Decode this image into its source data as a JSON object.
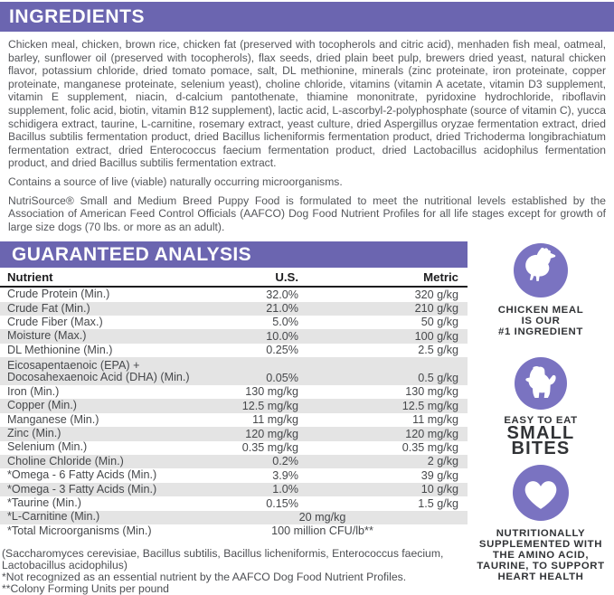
{
  "colors": {
    "header_purple": "#6b65b0",
    "badge_purple": "#7a73c1",
    "row_shade": "#e4e4e4",
    "title_text": "#ffffff"
  },
  "ingredients": {
    "title": "INGREDIENTS",
    "body": "Chicken meal, chicken, brown rice, chicken fat (preserved with tocopherols and citric acid), menhaden fish meal, oatmeal, barley, sunflower oil (preserved with tocopherols), flax seeds, dried plain beet pulp, brewers dried yeast, natural chicken flavor, potassium chloride, dried tomato pomace, salt, DL methionine, minerals (zinc proteinate, iron proteinate, copper proteinate, manganese proteinate, selenium yeast), choline chloride, vitamins (vitamin A acetate, vitamin D3 supplement, vitamin E supplement, niacin, d-calcium pantothenate, thiamine mononitrate, pyridoxine hydrochloride, riboflavin supplement, folic acid, biotin, vitamin B12 supplement), lactic acid, L-ascorbyl-2-polyphosphate (source of vitamin C), yucca schidigera extract, taurine, L-carnitine, rosemary extract, yeast culture, dried Aspergillus oryzae fermentation extract, dried Bacillus subtilis fermentation product, dried Bacillus licheniformis fermentation product, dried Trichoderma longibrachiatum fermentation extract, dried Enterococcus faecium fermentation product, dried Lactobacillus acidophilus fermentation product, and dried Bacillus subtilis fermentation extract.",
    "note": "Contains a source of live (viable) naturally occurring microorganisms.",
    "aafco": "NutriSource® Small and Medium Breed Puppy Food is formulated to meet the nutritional levels established by the Association of American Feed Control Officials (AAFCO) Dog Food Nutrient Profiles for all life stages except for growth of large size dogs (70 lbs. or more as an adult)."
  },
  "analysis": {
    "title": "GUARANTEED ANALYSIS",
    "columns": {
      "nutrient": "Nutrient",
      "us": "U.S.",
      "metric": "Metric"
    },
    "rows": [
      {
        "nutrient": "Crude Protein (Min.)",
        "us": "32.0%",
        "metric": "320 g/kg",
        "shaded": false
      },
      {
        "nutrient": "Crude Fat (Min.)",
        "us": "21.0%",
        "metric": "210 g/kg",
        "shaded": true
      },
      {
        "nutrient": "Crude Fiber (Max.)",
        "us": "5.0%",
        "metric": "50 g/kg",
        "shaded": false
      },
      {
        "nutrient": "Moisture (Max.)",
        "us": "10.0%",
        "metric": "100 g/kg",
        "shaded": true
      },
      {
        "nutrient": "DL Methionine (Min.)",
        "us": "0.25%",
        "metric": "2.5 g/kg",
        "shaded": false
      },
      {
        "nutrient": "Eicosapentaenoic (EPA) +\nDocosahexaenoic Acid (DHA) (Min.)",
        "us": "0.05%",
        "metric": "0.5 g/kg",
        "shaded": true,
        "tall": true
      },
      {
        "nutrient": "Iron (Min.)",
        "us": "130 mg/kg",
        "metric": "130 mg/kg",
        "shaded": false
      },
      {
        "nutrient": "Copper (Min.)",
        "us": "12.5 mg/kg",
        "metric": "12.5 mg/kg",
        "shaded": true
      },
      {
        "nutrient": "Manganese (Min.)",
        "us": "11 mg/kg",
        "metric": "11 mg/kg",
        "shaded": false
      },
      {
        "nutrient": "Zinc (Min.)",
        "us": "120 mg/kg",
        "metric": "120 mg/kg",
        "shaded": true
      },
      {
        "nutrient": "Selenium (Min.)",
        "us": "0.35 mg/kg",
        "metric": "0.35 mg/kg",
        "shaded": false
      },
      {
        "nutrient": "Choline Chloride (Min.)",
        "us": "0.2%",
        "metric": "2 g/kg",
        "shaded": true
      },
      {
        "nutrient": "*Omega - 6 Fatty Acids (Min.)",
        "us": "3.9%",
        "metric": "39 g/kg",
        "shaded": false
      },
      {
        "nutrient": "*Omega - 3 Fatty Acids (Min.)",
        "us": "1.0%",
        "metric": "10 g/kg",
        "shaded": true
      },
      {
        "nutrient": "*Taurine (Min.)",
        "us": "0.15%",
        "metric": "1.5 g/kg",
        "shaded": false
      },
      {
        "nutrient": "*L-Carnitine (Min.)",
        "span": "20 mg/kg",
        "shaded": true
      },
      {
        "nutrient": "*Total Microorganisms (Min.)",
        "span": "100 million CFU/lb**",
        "shaded": false
      }
    ],
    "footnotes": [
      "(Saccharomyces cerevisiae, Bacillus subtilis, Bacillus licheniformis, Enterococcus faecium, Lactobacillus acidophilus)",
      "*Not recognized as an essential nutrient by the AAFCO Dog Food Nutrient Profiles.",
      "**Colony Forming Units per pound"
    ]
  },
  "badges": [
    {
      "icon": "chicken-icon",
      "lines": [
        "CHICKEN MEAL",
        "IS OUR",
        "#1 INGREDIENT"
      ]
    },
    {
      "icon": "puppy-icon",
      "lines": [
        "EASY TO EAT",
        "SMALL",
        "BITES"
      ]
    },
    {
      "icon": "heart-icon",
      "lines": [
        "NUTRITIONALLY",
        "SUPPLEMENTED WITH",
        "THE AMINO ACID,",
        "TAURINE, TO SUPPORT",
        "HEART HEALTH"
      ]
    }
  ]
}
